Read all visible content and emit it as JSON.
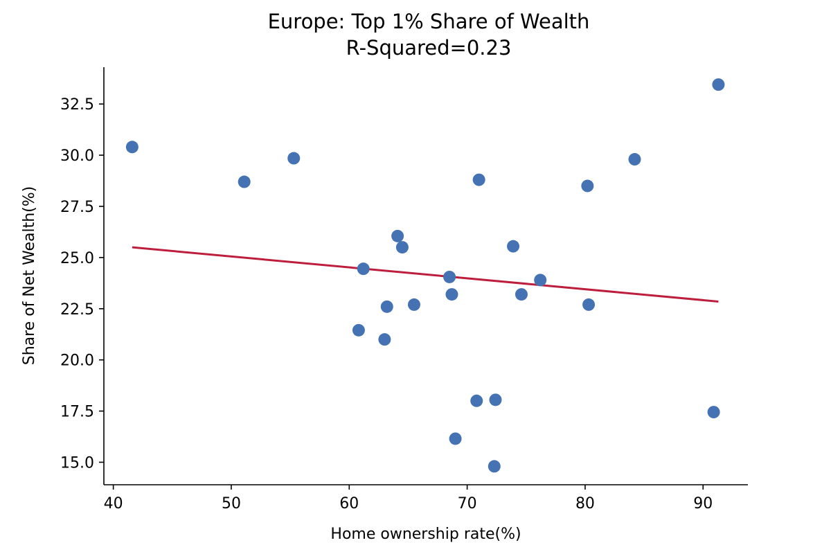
{
  "chart_data": {
    "type": "scatter",
    "title": "Europe: Top 1% Share of Wealth",
    "subtitle": "R-Squared=0.23",
    "xlabel": "Home ownership rate(%)",
    "ylabel": "Share of Net Wealth(%)",
    "xlim": [
      39.2,
      93.8
    ],
    "ylim": [
      13.9,
      34.3
    ],
    "xticks": [
      40,
      50,
      60,
      70,
      80,
      90
    ],
    "yticks": [
      15.0,
      17.5,
      20.0,
      22.5,
      25.0,
      27.5,
      30.0,
      32.5
    ],
    "grid": false,
    "colors": {
      "points": "#4572b3",
      "fit_line": "#be1e3e"
    },
    "points": [
      {
        "x": 41.6,
        "y": 30.4
      },
      {
        "x": 51.1,
        "y": 28.7
      },
      {
        "x": 55.3,
        "y": 29.85
      },
      {
        "x": 60.8,
        "y": 21.45
      },
      {
        "x": 61.2,
        "y": 24.45
      },
      {
        "x": 63.0,
        "y": 21.0
      },
      {
        "x": 63.2,
        "y": 22.6
      },
      {
        "x": 64.1,
        "y": 26.05
      },
      {
        "x": 64.5,
        "y": 25.5
      },
      {
        "x": 65.5,
        "y": 22.7
      },
      {
        "x": 68.5,
        "y": 24.05
      },
      {
        "x": 68.7,
        "y": 23.2
      },
      {
        "x": 69.0,
        "y": 16.15
      },
      {
        "x": 70.8,
        "y": 18.0
      },
      {
        "x": 71.0,
        "y": 28.8
      },
      {
        "x": 72.3,
        "y": 14.8
      },
      {
        "x": 72.4,
        "y": 18.05
      },
      {
        "x": 73.9,
        "y": 25.55
      },
      {
        "x": 74.6,
        "y": 23.2
      },
      {
        "x": 76.2,
        "y": 23.9
      },
      {
        "x": 80.2,
        "y": 28.5
      },
      {
        "x": 80.3,
        "y": 22.7
      },
      {
        "x": 84.2,
        "y": 29.8
      },
      {
        "x": 90.9,
        "y": 17.45
      },
      {
        "x": 91.3,
        "y": 33.45
      }
    ],
    "fit_line": {
      "x": [
        41.6,
        91.3
      ],
      "y": [
        25.5,
        22.85
      ]
    }
  }
}
